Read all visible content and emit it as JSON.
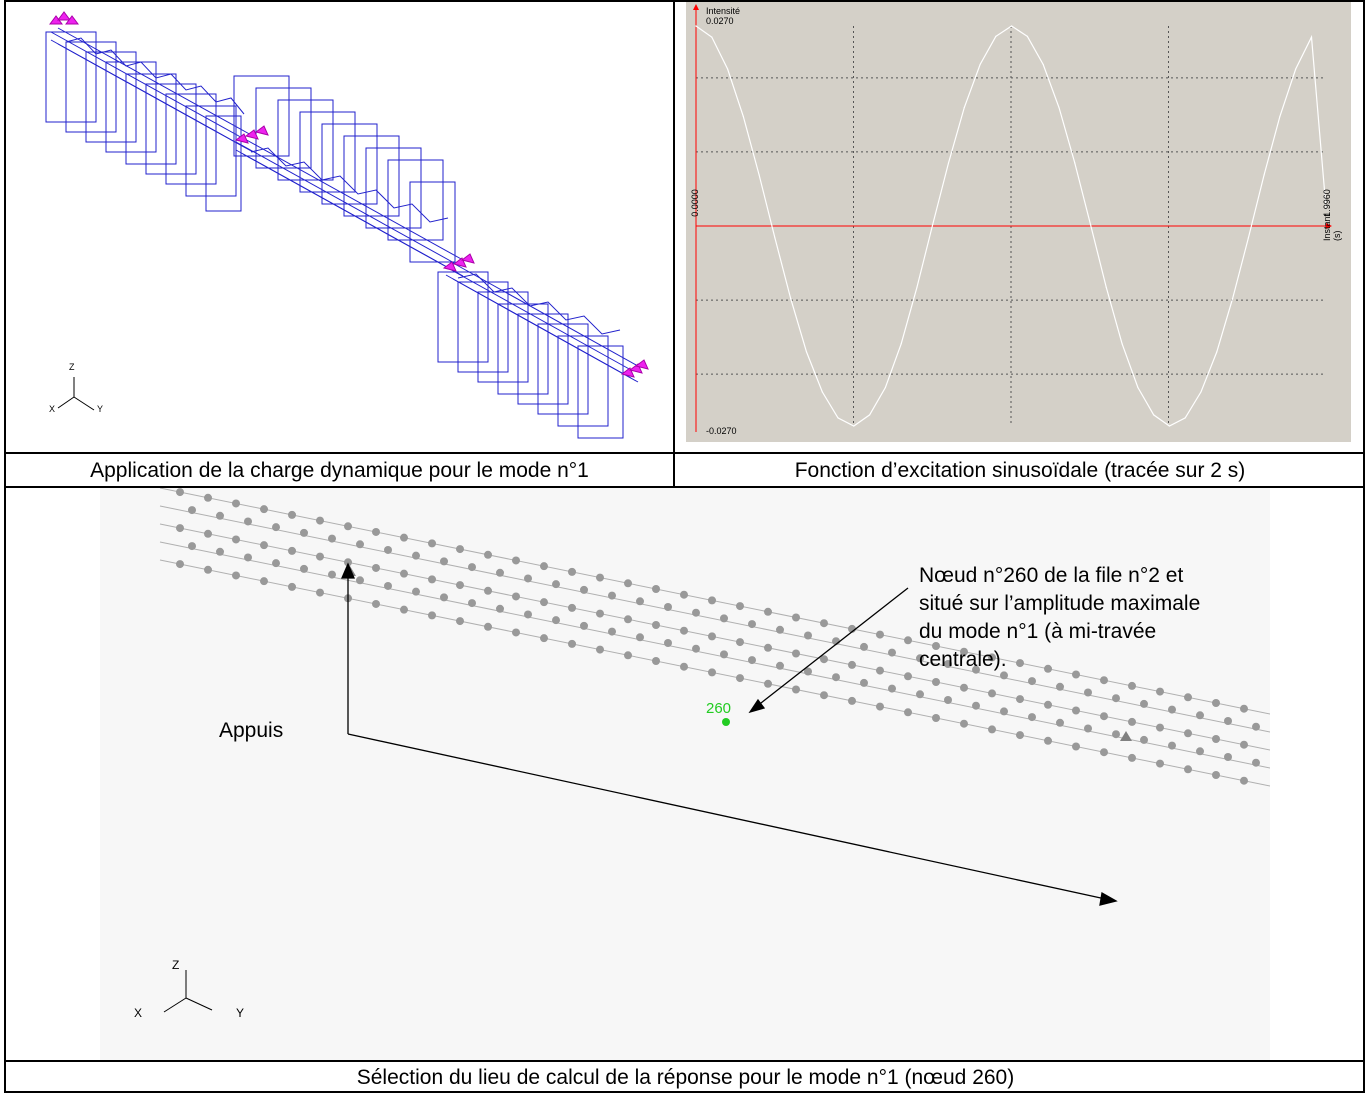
{
  "top_left": {
    "caption": "Application de la charge dynamique pour le mode n°1",
    "axis_z": "Z",
    "axis_x": "X",
    "axis_y": "Y"
  },
  "top_right": {
    "caption": "Fonction d’excitation sinusoïdale (tracée sur 2 s)",
    "ylabel": "Intensité",
    "ymax_label": "0.0270",
    "yzero_label": "0.0000",
    "ymin_label": "-0.0270",
    "xmax_label": "1.9960",
    "xlabel": "Instant (s)",
    "colors": {
      "background": "#d4d0c8",
      "axis": "#ff0000",
      "curve": "#ffffff",
      "grid": "#555555"
    }
  },
  "chart_data": {
    "type": "line",
    "title": "",
    "xlabel": "Instant (s)",
    "ylabel": "Intensité",
    "xlim": [
      0,
      1.996
    ],
    "ylim": [
      -0.027,
      0.027
    ],
    "grid": true,
    "series": [
      {
        "x": [
          0,
          0.05,
          0.1,
          0.15,
          0.2,
          0.25,
          0.3,
          0.35,
          0.4,
          0.45,
          0.5,
          0.55,
          0.6,
          0.65,
          0.7,
          0.75,
          0.8,
          0.85,
          0.9,
          0.95,
          1.0,
          1.05,
          1.1,
          1.15,
          1.2,
          1.25,
          1.3,
          1.35,
          1.4,
          1.45,
          1.5,
          1.55,
          1.6,
          1.65,
          1.7,
          1.75,
          1.8,
          1.85,
          1.9,
          1.95,
          1.996
        ],
        "y": [
          0.027,
          0.0255,
          0.0212,
          0.0148,
          0.0069,
          -0.0016,
          -0.0098,
          -0.017,
          -0.0224,
          -0.0259,
          -0.027,
          -0.0255,
          -0.0218,
          -0.0159,
          -0.0083,
          0.0002,
          0.0085,
          0.016,
          0.0218,
          0.0256,
          0.027,
          0.0256,
          0.0218,
          0.016,
          0.0085,
          0.0002,
          -0.0083,
          -0.0159,
          -0.0218,
          -0.0255,
          -0.027,
          -0.0259,
          -0.0224,
          -0.017,
          -0.0098,
          -0.0016,
          0.0069,
          0.0148,
          0.0212,
          0.0255,
          0.0024
        ]
      }
    ]
  },
  "bottom": {
    "caption": "Sélection du lieu de calcul de la réponse pour le mode n°1 (nœud 260)",
    "node_annotation": "Nœud n°260 de la file n°2 et situé sur l’amplitude maximale du mode n°1 (à mi-travée centrale).",
    "supports_label": "Appuis",
    "node_label": "260",
    "axis_z": "Z",
    "axis_x": "X",
    "axis_y": "Y"
  }
}
